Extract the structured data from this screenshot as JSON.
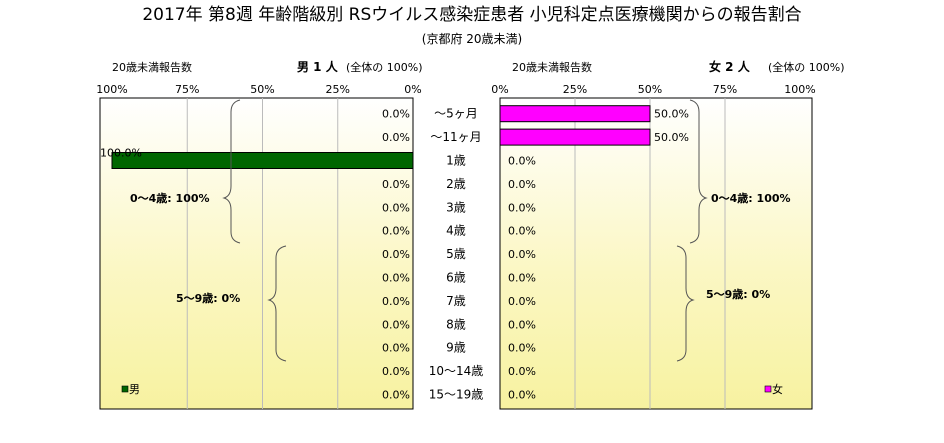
{
  "title": "2017年 第8週 年齢階級別 RSウイルス感染症患者 小児科定点医療機関からの報告割合",
  "subtitle": "(京都府 20歳未満)",
  "male": {
    "header_left": "20歳未満報告数",
    "header_bold": "男  1 人",
    "header_right": "(全体の  100%)",
    "legend": "男",
    "color": "#006600",
    "groups": [
      {
        "label": "0～4歳: 100%"
      },
      {
        "label": "5～9歳: 0%"
      }
    ]
  },
  "female": {
    "header_left": "20歳未満報告数",
    "header_bold": "女  2 人",
    "header_right": "(全体の  100%)",
    "legend": "女",
    "color": "#ff00ff",
    "groups": [
      {
        "label": "0～4歳: 100%"
      },
      {
        "label": "5～9歳: 0%"
      }
    ]
  },
  "chart_data": {
    "type": "bar",
    "orientation": "horizontal-population-pyramid",
    "title": "2017年 第8週 年齢階級別 RSウイルス感染症患者 小児科定点医療機関からの報告割合",
    "subtitle": "(京都府 20歳未満)",
    "categories": [
      "～5ヶ月",
      "～11ヶ月",
      "1歳",
      "2歳",
      "3歳",
      "4歳",
      "5歳",
      "6歳",
      "7歳",
      "8歳",
      "9歳",
      "10～14歳",
      "15～19歳"
    ],
    "xlim": [
      0,
      100
    ],
    "ticks": [
      "0%",
      "25%",
      "50%",
      "75%",
      "100%"
    ],
    "series": [
      {
        "name": "男",
        "values": [
          0,
          0,
          100,
          0,
          0,
          0,
          0,
          0,
          0,
          0,
          0,
          0,
          0
        ],
        "labels": [
          "0.0%",
          "0.0%",
          "100.0%",
          "0.0%",
          "0.0%",
          "0.0%",
          "0.0%",
          "0.0%",
          "0.0%",
          "0.0%",
          "0.0%",
          "0.0%",
          "0.0%"
        ]
      },
      {
        "name": "女",
        "values": [
          50,
          50,
          0,
          0,
          0,
          0,
          0,
          0,
          0,
          0,
          0,
          0,
          0
        ],
        "labels": [
          "50.0%",
          "50.0%",
          "0.0%",
          "0.0%",
          "0.0%",
          "0.0%",
          "0.0%",
          "0.0%",
          "0.0%",
          "0.0%",
          "0.0%",
          "0.0%",
          "0.0%"
        ]
      }
    ]
  }
}
